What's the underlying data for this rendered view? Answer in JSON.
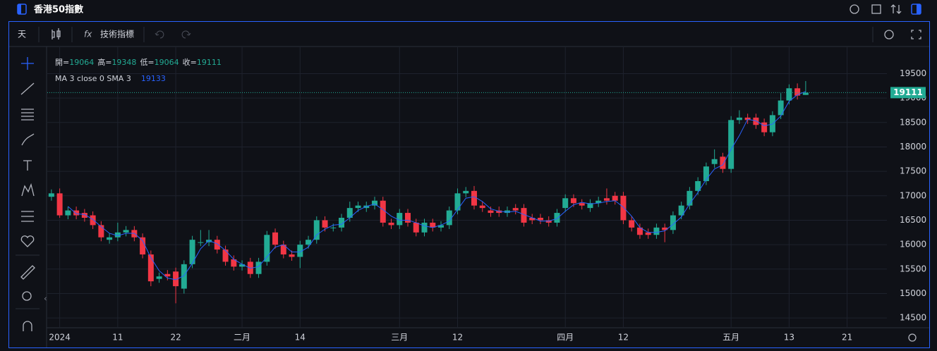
{
  "ui": {
    "title": "香港50指數",
    "interval": "天",
    "indicators": "技術指標",
    "ohlc_labels": [
      "開=",
      "高=",
      "低=",
      "收="
    ],
    "ma_label": "MA 3 close 0 SMA 3"
  },
  "chart_data": {
    "type": "candlestick",
    "open": [
      16980,
      17050,
      16600,
      16700,
      16650,
      16600,
      16400,
      16100,
      16150,
      16250,
      16300,
      16150,
      15800,
      15300,
      15400,
      15450,
      15100,
      15600,
      16050,
      16050,
      16100,
      15900,
      15700,
      15550,
      15650,
      15400,
      15650,
      16250,
      16000,
      15800,
      15750,
      16000,
      16100,
      16500,
      16350,
      16350,
      16550,
      16750,
      16750,
      16800,
      16900,
      16450,
      16400,
      16650,
      16450,
      16250,
      16450,
      16350,
      16400,
      16700,
      17050,
      17100,
      16800,
      16700,
      16700,
      16650,
      16750,
      16750,
      16550,
      16550,
      16500,
      16450,
      16750,
      16950,
      16850,
      16750,
      16850,
      16950,
      17000,
      17000,
      16500,
      16350,
      16250,
      16200,
      16350,
      16300,
      16600,
      16800,
      17100,
      17300,
      17650,
      17800,
      17550,
      18550,
      18600,
      18600,
      18500,
      18300,
      18650,
      18950,
      19200,
      19064
    ],
    "high": [
      17130,
      17150,
      16780,
      16780,
      16730,
      16680,
      16480,
      16230,
      16450,
      16380,
      16380,
      16230,
      15880,
      15430,
      15480,
      15530,
      15680,
      16180,
      16300,
      16300,
      16180,
      15980,
      15780,
      15680,
      15730,
      15730,
      16280,
      16330,
      16080,
      15880,
      16080,
      16180,
      16580,
      16580,
      16430,
      16630,
      16880,
      16880,
      16880,
      16980,
      16980,
      16530,
      16730,
      16730,
      16530,
      16530,
      16530,
      16480,
      16780,
      17150,
      17180,
      17200,
      16880,
      16780,
      16780,
      16780,
      16830,
      16830,
      16630,
      16630,
      16580,
      16730,
      17030,
      17030,
      16930,
      16930,
      16980,
      17150,
      17080,
      17080,
      16580,
      16430,
      16330,
      16430,
      16430,
      16680,
      16880,
      17180,
      17380,
      17680,
      17950,
      17880,
      18630,
      18750,
      18680,
      18680,
      18580,
      18730,
      19100,
      19280,
      19300,
      19348
    ],
    "low": [
      16900,
      16550,
      16520,
      16520,
      16470,
      16320,
      16070,
      16020,
      16070,
      16170,
      16070,
      15720,
      15150,
      15220,
      15270,
      14800,
      15000,
      15520,
      15970,
      15970,
      15820,
      15570,
      15470,
      15470,
      15320,
      15320,
      15570,
      15920,
      15720,
      15670,
      15520,
      15920,
      16020,
      16270,
      16270,
      16270,
      16470,
      16670,
      16670,
      16720,
      16370,
      16320,
      16320,
      16370,
      16170,
      16170,
      16270,
      16270,
      16320,
      16620,
      16970,
      16720,
      16670,
      16570,
      16570,
      16570,
      16620,
      16370,
      16420,
      16420,
      16370,
      16370,
      16670,
      16770,
      16720,
      16670,
      16770,
      16820,
      16820,
      16420,
      16270,
      16120,
      16120,
      16120,
      16050,
      16220,
      16520,
      16720,
      17020,
      17220,
      17570,
      17470,
      17470,
      18470,
      18470,
      18370,
      18220,
      18220,
      18570,
      18870,
      18970,
      19064
    ],
    "close": [
      17050,
      16600,
      16700,
      16600,
      16550,
      16400,
      16150,
      16150,
      16250,
      16300,
      16150,
      15800,
      15250,
      15350,
      15350,
      15150,
      15600,
      16100,
      16050,
      16100,
      15900,
      15650,
      15550,
      15600,
      15400,
      15650,
      16200,
      16000,
      15800,
      15750,
      16000,
      16100,
      16500,
      16350,
      16350,
      16550,
      16750,
      16800,
      16800,
      16900,
      16450,
      16400,
      16650,
      16450,
      16250,
      16450,
      16350,
      16400,
      16700,
      17050,
      17100,
      16800,
      16750,
      16650,
      16650,
      16700,
      16700,
      16450,
      16500,
      16500,
      16450,
      16650,
      16950,
      16850,
      16800,
      16850,
      16900,
      16900,
      16900,
      16500,
      16350,
      16200,
      16200,
      16350,
      16300,
      16600,
      16800,
      17100,
      17300,
      17600,
      17750,
      17550,
      18550,
      18600,
      18550,
      18450,
      18300,
      18650,
      18950,
      19200,
      19050,
      19111
    ],
    "ma": [
      null,
      null,
      16783,
      16633,
      16617,
      16517,
      16367,
      16233,
      16183,
      16233,
      16233,
      16083,
      15733,
      15467,
      15317,
      15283,
      15367,
      15617,
      15917,
      16083,
      16017,
      15883,
      15700,
      15600,
      15517,
      15550,
      15750,
      15950,
      16000,
      15850,
      15850,
      15950,
      16200,
      16317,
      16400,
      16417,
      16550,
      16700,
      16783,
      16833,
      16717,
      16583,
      16500,
      16500,
      16450,
      16383,
      16350,
      16400,
      16483,
      16717,
      16950,
      16983,
      16883,
      16733,
      16683,
      16667,
      16683,
      16617,
      16550,
      16483,
      16483,
      16533,
      16683,
      16817,
      16867,
      16833,
      16850,
      16883,
      16900,
      16767,
      16583,
      16350,
      16250,
      16250,
      16283,
      16417,
      16567,
      16833,
      17067,
      17333,
      17550,
      17633,
      17950,
      18233,
      18567,
      18533,
      18433,
      18467,
      18633,
      18933,
      19067,
      19133
    ],
    "up_color": "#22ab94",
    "down_color": "#f23645",
    "ma_color": "#2962ff",
    "ylim": [
      14300,
      20040
    ],
    "yticks": [
      14500,
      15000,
      15500,
      16000,
      16500,
      17000,
      17500,
      18000,
      18500,
      19000,
      19500
    ],
    "xlim": [
      -0.5,
      100.8
    ],
    "xticks": [
      {
        "value": 1,
        "label": "2024"
      },
      {
        "value": 8,
        "label": "11"
      },
      {
        "value": 15,
        "label": "22"
      },
      {
        "value": 23,
        "label": "二月"
      },
      {
        "value": 30,
        "label": "14"
      },
      {
        "value": 42,
        "label": "三月"
      },
      {
        "value": 49,
        "label": "12"
      },
      {
        "value": 62,
        "label": "四月"
      },
      {
        "value": 69,
        "label": "12"
      },
      {
        "value": 82,
        "label": "五月"
      },
      {
        "value": 89,
        "label": "13"
      },
      {
        "value": 96,
        "label": "21"
      }
    ],
    "grid": true
  }
}
